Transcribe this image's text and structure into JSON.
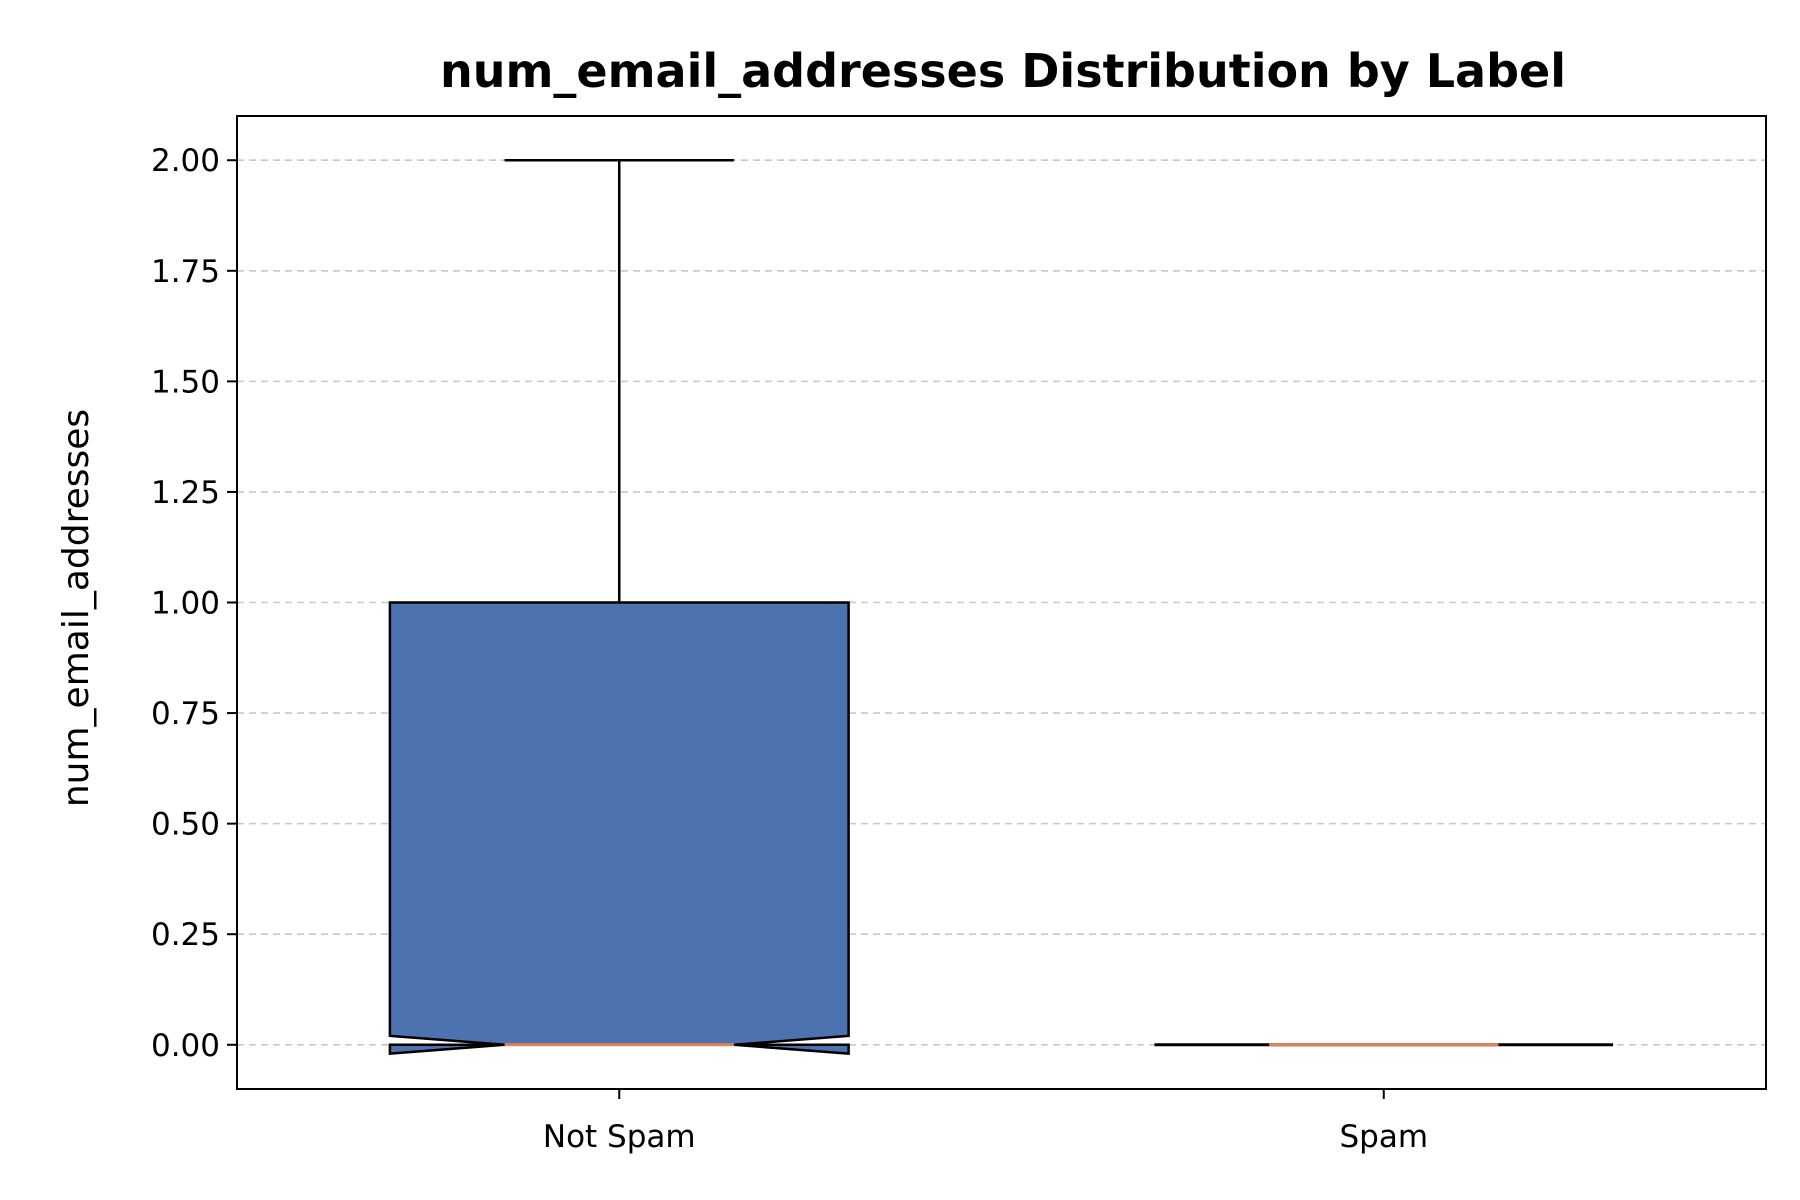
{
  "chart_data": {
    "type": "boxplot",
    "title": "num_email_addresses Distribution by Label",
    "xlabel": "",
    "ylabel": "num_email_addresses",
    "categories": [
      "Not Spam",
      "Spam"
    ],
    "yticks": [
      "0.00",
      "0.25",
      "0.50",
      "0.75",
      "1.00",
      "1.25",
      "1.50",
      "1.75",
      "2.00"
    ],
    "ylim": [
      -0.1,
      2.1
    ],
    "grid": "y-dashed",
    "notched": true,
    "boxes": [
      {
        "label": "Not Spam",
        "whisker_low": 0,
        "q1": 0,
        "median": 0,
        "q3": 1,
        "whisker_high": 2,
        "notch_low": -0.02,
        "notch_high": 0.02,
        "color": "#4c72b0"
      },
      {
        "label": "Spam",
        "whisker_low": 0,
        "q1": 0,
        "median": 0,
        "q3": 0,
        "whisker_high": 0,
        "notch_low": 0,
        "notch_high": 0,
        "color": "#4c72b0"
      }
    ],
    "colors": {
      "box": "#4c72b0",
      "median": "#dd8452",
      "grid": "#c8c8c8",
      "axis": "#000000"
    }
  }
}
